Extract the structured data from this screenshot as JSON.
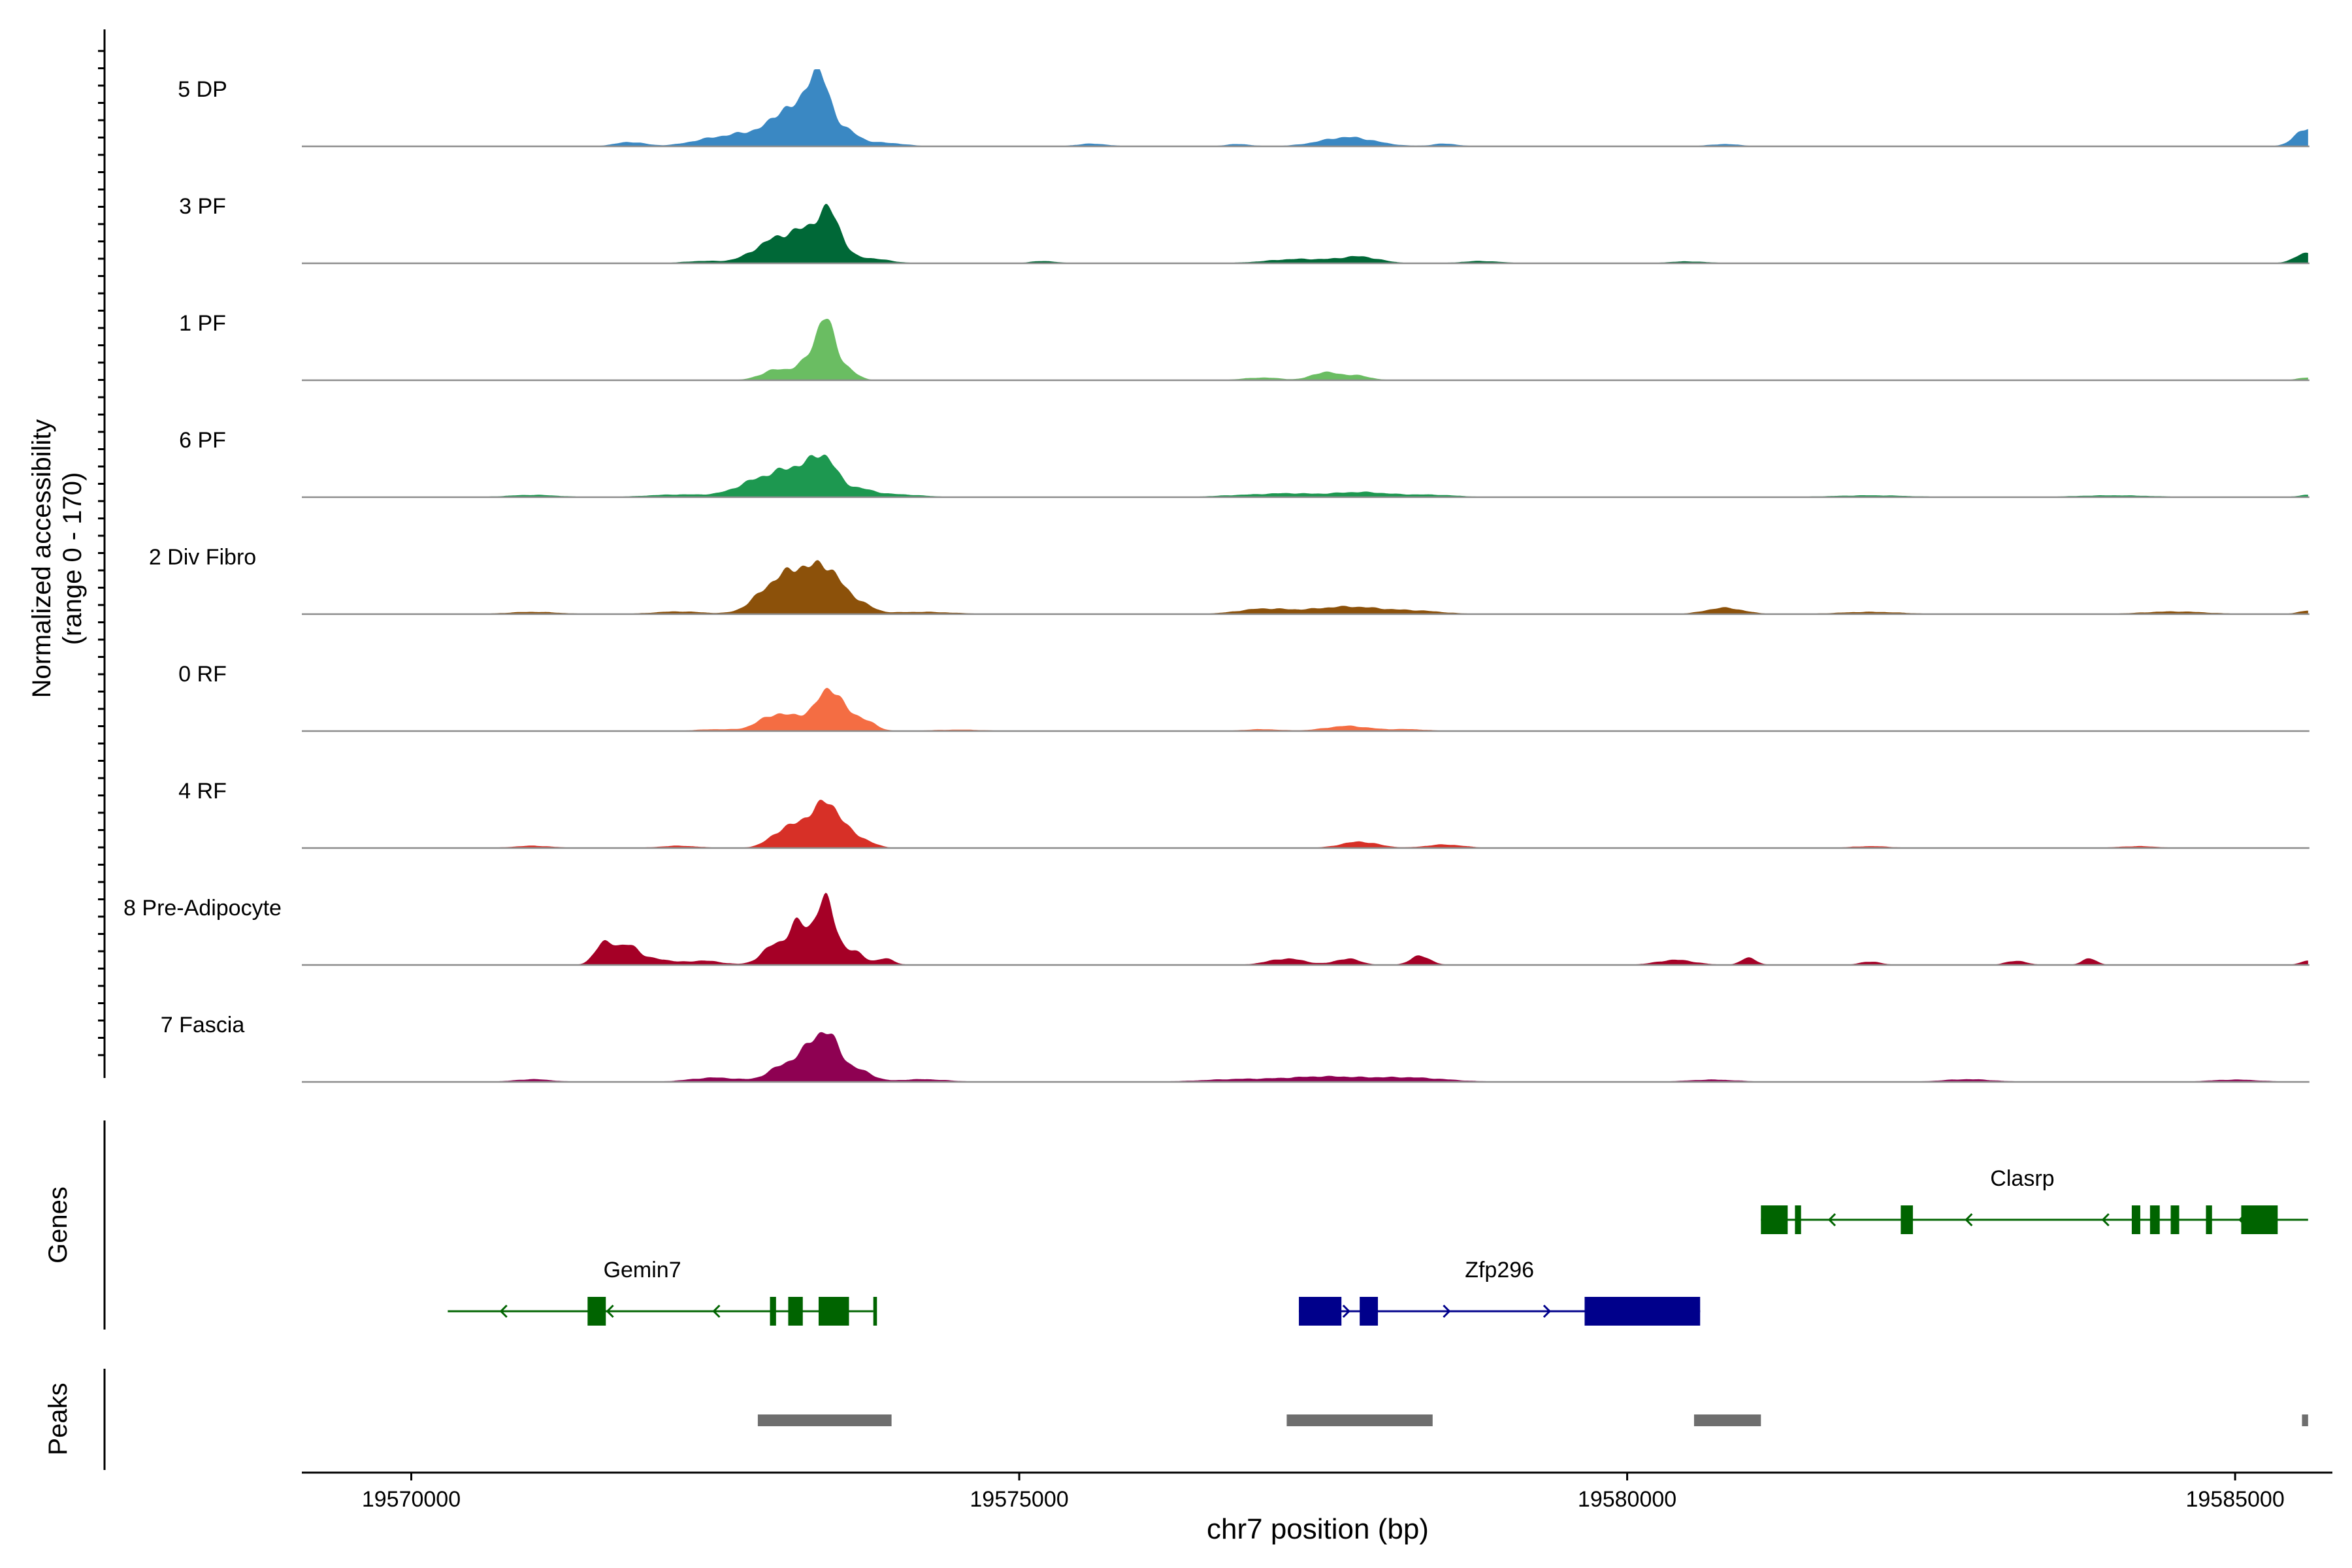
{
  "chart_data": [
    {
      "type": "area",
      "title": "",
      "xlabel": "chr7 position (bp)",
      "ylabel": "Normalized accessibility",
      "ylabel_range": "(range 0 - 170)",
      "xlim": [
        19569100,
        19585800
      ],
      "ylim": [
        0,
        170
      ],
      "x_ticks": [
        19570000,
        19575000,
        19580000,
        19585000
      ],
      "x_tick_labels": [
        "19570000",
        "19575000",
        "19580000",
        "19585000"
      ],
      "tracks": [
        {
          "name": "5 DP",
          "color": "#3A88C3",
          "peaks": [
            [
              19571800,
              10,
              120
            ],
            [
              19572500,
              18,
              200
            ],
            [
              19572900,
              35,
              200
            ],
            [
              19573100,
              70,
              110
            ],
            [
              19573280,
              95,
              70
            ],
            [
              19573380,
              115,
              80
            ],
            [
              19573550,
              40,
              120
            ],
            [
              19573900,
              8,
              150
            ],
            [
              19575600,
              6,
              120
            ],
            [
              19576800,
              5,
              100
            ],
            [
              19577700,
              22,
              220
            ],
            [
              19578500,
              6,
              100
            ],
            [
              19580800,
              5,
              120
            ],
            [
              19585600,
              45,
              100
            ]
          ]
        },
        {
          "name": "3 PF",
          "color": "#006837",
          "peaks": [
            [
              19572400,
              5,
              150
            ],
            [
              19573000,
              55,
              180
            ],
            [
              19573300,
              65,
              150
            ],
            [
              19573450,
              85,
              90
            ],
            [
              19573750,
              12,
              160
            ],
            [
              19575200,
              5,
              100
            ],
            [
              19577300,
              10,
              250
            ],
            [
              19577800,
              15,
              160
            ],
            [
              19578800,
              5,
              150
            ],
            [
              19580500,
              4,
              150
            ],
            [
              19585600,
              25,
              100
            ]
          ]
        },
        {
          "name": "1 PF",
          "color": "#6ABD62",
          "peaks": [
            [
              19573000,
              25,
              120
            ],
            [
              19573250,
              40,
              90
            ],
            [
              19573400,
              140,
              70
            ],
            [
              19573550,
              35,
              90
            ],
            [
              19577000,
              6,
              150
            ],
            [
              19577500,
              18,
              100
            ],
            [
              19577750,
              12,
              120
            ],
            [
              19585600,
              6,
              80
            ]
          ]
        },
        {
          "name": "6 PF",
          "color": "#1D9850",
          "peaks": [
            [
              19571000,
              5,
              200
            ],
            [
              19572200,
              6,
              250
            ],
            [
              19572900,
              45,
              200
            ],
            [
              19573200,
              55,
              150
            ],
            [
              19573400,
              75,
              100
            ],
            [
              19573650,
              20,
              140
            ],
            [
              19574000,
              6,
              200
            ],
            [
              19576800,
              4,
              200
            ],
            [
              19577200,
              8,
              200
            ],
            [
              19577800,
              12,
              250
            ],
            [
              19578400,
              5,
              200
            ],
            [
              19582000,
              4,
              300
            ],
            [
              19584000,
              4,
              300
            ],
            [
              19585600,
              5,
              80
            ]
          ]
        },
        {
          "name": "2 Div Fibro",
          "color": "#8C510A",
          "peaks": [
            [
              19571000,
              5,
              200
            ],
            [
              19572200,
              6,
              200
            ],
            [
              19573000,
              75,
              160
            ],
            [
              19573180,
              55,
              100
            ],
            [
              19573400,
              110,
              120
            ],
            [
              19573650,
              30,
              120
            ],
            [
              19574200,
              5,
              250
            ],
            [
              19577000,
              12,
              200
            ],
            [
              19577700,
              18,
              300
            ],
            [
              19578300,
              6,
              200
            ],
            [
              19580800,
              15,
              150
            ],
            [
              19582000,
              5,
              250
            ],
            [
              19584500,
              6,
              250
            ],
            [
              19585600,
              8,
              80
            ]
          ]
        },
        {
          "name": "0 RF",
          "color": "#F46D43",
          "peaks": [
            [
              19572500,
              4,
              150
            ],
            [
              19573000,
              40,
              140
            ],
            [
              19573250,
              25,
              100
            ],
            [
              19573450,
              100,
              100
            ],
            [
              19573700,
              30,
              100
            ],
            [
              19574500,
              3,
              200
            ],
            [
              19577000,
              4,
              150
            ],
            [
              19577700,
              12,
              180
            ],
            [
              19578200,
              4,
              150
            ]
          ]
        },
        {
          "name": "4 RF",
          "color": "#D73027",
          "peaks": [
            [
              19571000,
              5,
              150
            ],
            [
              19572200,
              5,
              150
            ],
            [
              19573100,
              50,
              130
            ],
            [
              19573300,
              40,
              90
            ],
            [
              19573450,
              95,
              110
            ],
            [
              19573700,
              20,
              100
            ],
            [
              19577800,
              15,
              150
            ],
            [
              19578500,
              8,
              150
            ],
            [
              19582000,
              4,
              150
            ],
            [
              19584200,
              4,
              150
            ]
          ]
        },
        {
          "name": "8 Pre-Adipocyte",
          "color": "#A50026",
          "peaks": [
            [
              19571600,
              60,
              80
            ],
            [
              19571800,
              45,
              70
            ],
            [
              19572000,
              15,
              120
            ],
            [
              19572400,
              10,
              150
            ],
            [
              19573000,
              50,
              110
            ],
            [
              19573180,
              85,
              70
            ],
            [
              19573400,
              160,
              90
            ],
            [
              19573650,
              30,
              80
            ],
            [
              19573900,
              15,
              70
            ],
            [
              19577200,
              15,
              150
            ],
            [
              19577700,
              15,
              100
            ],
            [
              19578300,
              22,
              80
            ],
            [
              19580400,
              12,
              150
            ],
            [
              19581000,
              18,
              60
            ],
            [
              19582000,
              8,
              80
            ],
            [
              19583200,
              10,
              80
            ],
            [
              19583800,
              15,
              60
            ],
            [
              19585600,
              10,
              60
            ]
          ]
        },
        {
          "name": "7 Fascia",
          "color": "#8E0152",
          "peaks": [
            [
              19571000,
              6,
              150
            ],
            [
              19572500,
              10,
              200
            ],
            [
              19573100,
              45,
              140
            ],
            [
              19573300,
              60,
              90
            ],
            [
              19573450,
              95,
              100
            ],
            [
              19573700,
              25,
              100
            ],
            [
              19574200,
              6,
              200
            ],
            [
              19576800,
              6,
              300
            ],
            [
              19577500,
              12,
              300
            ],
            [
              19578200,
              10,
              300
            ],
            [
              19580700,
              5,
              200
            ],
            [
              19582800,
              6,
              200
            ],
            [
              19585000,
              5,
              200
            ]
          ]
        }
      ]
    },
    {
      "type": "gene-annotation",
      "ylabel": "Genes",
      "genes": [
        {
          "name": "Clasrp",
          "strand": "-",
          "color": "#006400",
          "start": 19581100,
          "end": 19585600,
          "exons": [
            [
              19581100,
              19581320
            ],
            [
              19581380,
              19581430
            ],
            [
              19582250,
              19582350
            ],
            [
              19584150,
              19584220
            ],
            [
              19584300,
              19584380
            ],
            [
              19584470,
              19584540
            ],
            [
              19584760,
              19584810
            ],
            [
              19585050,
              19585350
            ]
          ]
        },
        {
          "name": "Gemin7",
          "strand": "-",
          "color": "#006400",
          "start": 19570300,
          "end": 19573800,
          "exons": [
            [
              19571450,
              19571600
            ],
            [
              19572950,
              19573000
            ],
            [
              19573100,
              19573220
            ],
            [
              19573350,
              19573600
            ],
            [
              19573800,
              19573830
            ]
          ]
        },
        {
          "name": "Zfp296",
          "strand": "+",
          "color": "#00008B",
          "start": 19577300,
          "end": 19580600,
          "exons": [
            [
              19577300,
              19577650
            ],
            [
              19577800,
              19577950
            ],
            [
              19579650,
              19580600
            ]
          ]
        }
      ]
    },
    {
      "type": "peak-annotation",
      "ylabel": "Peaks",
      "peaks": [
        [
          19572850,
          19573950
        ],
        [
          19577200,
          19578400
        ],
        [
          19580550,
          19581100
        ],
        [
          19585550,
          19585600
        ]
      ]
    }
  ]
}
